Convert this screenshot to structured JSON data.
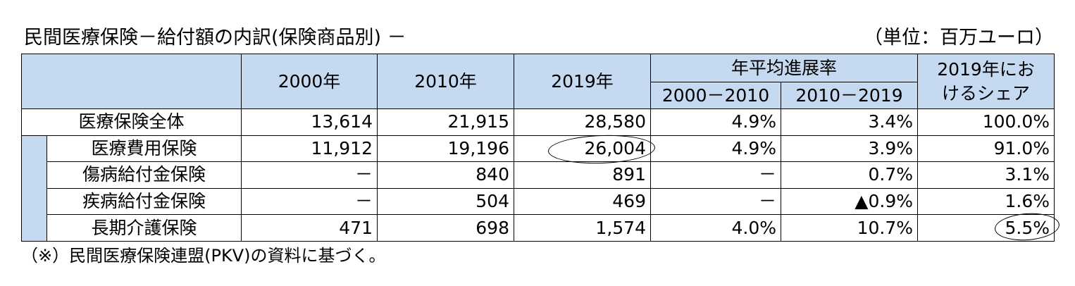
{
  "title": "民間医療保険－給付額の内訳(保険商品別) －",
  "unit": "（単位：百万ユーロ）",
  "note": "（※）民間医療保険連盟(PKV)の資料に基づく。",
  "table": {
    "headers": {
      "col_2000": "2000年",
      "col_2010": "2010年",
      "col_2019": "2019年",
      "growth_group": "年平均進展率",
      "growth_2000_2010": "2000－2010",
      "growth_2010_2019": "2010－2019",
      "share_line1": "2019年にお",
      "share_line2": "けるシェア"
    },
    "rows": [
      {
        "label": "医療保険全体",
        "v2000": "13,614",
        "v2010": "21,915",
        "v2019": "28,580",
        "g1": "4.9%",
        "g2": "3.4%",
        "share": "100.0%"
      },
      {
        "label": "医療費用保険",
        "v2000": "11,912",
        "v2010": "19,196",
        "v2019": "26,004",
        "g1": "4.9%",
        "g2": "3.9%",
        "share": "91.0%"
      },
      {
        "label": "傷病給付金保険",
        "v2000": "－",
        "v2010": "840",
        "v2019": "891",
        "g1": "－",
        "g2": "0.7%",
        "share": "3.1%"
      },
      {
        "label": "疾病給付金保険",
        "v2000": "－",
        "v2010": "504",
        "v2019": "469",
        "g1": "－",
        "g2": "▲0.9%",
        "share": "1.6%"
      },
      {
        "label": "長期介護保険",
        "v2000": "471",
        "v2010": "698",
        "v2019": "1,574",
        "g1": "4.0%",
        "g2": "10.7%",
        "share": "5.5%"
      }
    ]
  }
}
